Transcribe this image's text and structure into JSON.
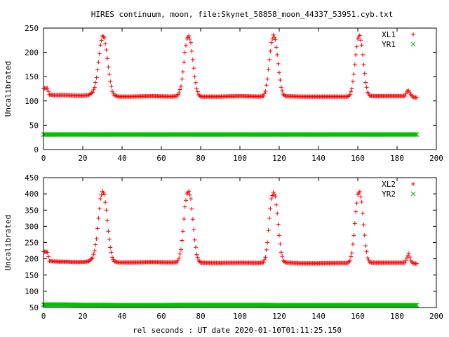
{
  "page": {
    "title": "HIRES continuum, moon, file:Skynet_58858_moon_44337_53951.cyb.txt",
    "xlabel": "rel seconds : UT date 2020-01-10T01:11:25.150"
  },
  "chart_data": [
    {
      "type": "scatter",
      "ylabel": "Uncalibrated",
      "xlim": [
        0,
        200
      ],
      "ylim": [
        0,
        250
      ],
      "xticks": [
        "0",
        "20",
        "40",
        "60",
        "80",
        "100",
        "120",
        "140",
        "160",
        "180",
        "200"
      ],
      "yticks": [
        "0",
        "50",
        "100",
        "150",
        "200",
        "250"
      ],
      "legend_position": "top-right",
      "series": [
        {
          "name": "XL1",
          "marker": "plus",
          "color": "#ff0000",
          "points": [
            [
              0,
              126
            ],
            [
              1,
              126
            ],
            [
              2,
              126
            ],
            [
              3,
              113
            ],
            [
              5,
              112
            ],
            [
              8,
              112
            ],
            [
              12,
              112
            ],
            [
              16,
              111
            ],
            [
              20,
              111
            ],
            [
              23,
              112
            ],
            [
              25,
              118
            ],
            [
              26,
              128
            ],
            [
              27,
              148
            ],
            [
              28,
              180
            ],
            [
              29,
              215
            ],
            [
              30,
              234
            ],
            [
              31,
              230
            ],
            [
              32,
              205
            ],
            [
              33,
              170
            ],
            [
              34,
              140
            ],
            [
              35,
              120
            ],
            [
              36,
              112
            ],
            [
              38,
              109
            ],
            [
              45,
              109
            ],
            [
              55,
              110
            ],
            [
              65,
              109
            ],
            [
              68,
              110
            ],
            [
              69,
              117
            ],
            [
              70,
              130
            ],
            [
              71,
              160
            ],
            [
              72,
              200
            ],
            [
              73,
              228
            ],
            [
              74,
              234
            ],
            [
              75,
              220
            ],
            [
              76,
              185
            ],
            [
              77,
              150
            ],
            [
              78,
              125
            ],
            [
              79,
              113
            ],
            [
              80,
              109
            ],
            [
              90,
              109
            ],
            [
              100,
              110
            ],
            [
              110,
              109
            ],
            [
              112,
              110
            ],
            [
              113,
              120
            ],
            [
              114,
              145
            ],
            [
              115,
              185
            ],
            [
              116,
              220
            ],
            [
              117,
              236
            ],
            [
              118,
              226
            ],
            [
              119,
              195
            ],
            [
              120,
              158
            ],
            [
              121,
              128
            ],
            [
              122,
              114
            ],
            [
              123,
              110
            ],
            [
              130,
              109
            ],
            [
              140,
              109
            ],
            [
              150,
              109
            ],
            [
              155,
              109
            ],
            [
              156,
              113
            ],
            [
              157,
              125
            ],
            [
              158,
              155
            ],
            [
              159,
              195
            ],
            [
              160,
              228
            ],
            [
              161,
              235
            ],
            [
              162,
              215
            ],
            [
              163,
              175
            ],
            [
              164,
              138
            ],
            [
              165,
              118
            ],
            [
              166,
              111
            ],
            [
              167,
              110
            ],
            [
              175,
              110
            ],
            [
              180,
              110
            ],
            [
              184,
              110
            ],
            [
              185,
              120
            ],
            [
              186,
              121
            ],
            [
              187,
              113
            ],
            [
              188,
              108
            ],
            [
              190,
              107
            ]
          ]
        },
        {
          "name": "YR1",
          "marker": "cross",
          "color": "#00c000",
          "points": [
            [
              0,
              31
            ],
            [
              10,
              31
            ],
            [
              20,
              31
            ],
            [
              30,
              31
            ],
            [
              40,
              31
            ],
            [
              50,
              31
            ],
            [
              60,
              31
            ],
            [
              70,
              31
            ],
            [
              80,
              31
            ],
            [
              90,
              31
            ],
            [
              100,
              31
            ],
            [
              110,
              31
            ],
            [
              120,
              31
            ],
            [
              130,
              31
            ],
            [
              140,
              31
            ],
            [
              150,
              31
            ],
            [
              160,
              31
            ],
            [
              170,
              31
            ],
            [
              180,
              31
            ],
            [
              190,
              31
            ]
          ]
        }
      ]
    },
    {
      "type": "scatter",
      "ylabel": "Uncalibrated",
      "xlim": [
        0,
        200
      ],
      "ylim": [
        50,
        450
      ],
      "xticks": [
        "0",
        "20",
        "40",
        "60",
        "80",
        "100",
        "120",
        "140",
        "160",
        "180",
        "200"
      ],
      "yticks": [
        "50",
        "100",
        "150",
        "200",
        "250",
        "300",
        "350",
        "400",
        "450"
      ],
      "legend_position": "top-right",
      "series": [
        {
          "name": "XL2",
          "marker": "plus",
          "color": "#ff0000",
          "points": [
            [
              0,
              222
            ],
            [
              1,
              222
            ],
            [
              2,
              220
            ],
            [
              3,
              193
            ],
            [
              5,
              192
            ],
            [
              8,
              191
            ],
            [
              12,
              191
            ],
            [
              16,
              190
            ],
            [
              20,
              190
            ],
            [
              23,
              192
            ],
            [
              25,
              203
            ],
            [
              26,
              225
            ],
            [
              27,
              262
            ],
            [
              28,
              325
            ],
            [
              29,
              385
            ],
            [
              30,
              408
            ],
            [
              31,
              398
            ],
            [
              32,
              350
            ],
            [
              33,
              285
            ],
            [
              34,
              235
            ],
            [
              35,
              205
            ],
            [
              36,
              192
            ],
            [
              38,
              189
            ],
            [
              45,
              189
            ],
            [
              55,
              190
            ],
            [
              65,
              189
            ],
            [
              68,
              190
            ],
            [
              69,
              202
            ],
            [
              70,
              228
            ],
            [
              71,
              285
            ],
            [
              72,
              360
            ],
            [
              73,
              400
            ],
            [
              74,
              408
            ],
            [
              75,
              385
            ],
            [
              76,
              322
            ],
            [
              77,
              258
            ],
            [
              78,
              213
            ],
            [
              79,
              195
            ],
            [
              80,
              188
            ],
            [
              90,
              187
            ],
            [
              100,
              188
            ],
            [
              110,
              187
            ],
            [
              112,
              189
            ],
            [
              113,
              205
            ],
            [
              114,
              250
            ],
            [
              115,
              325
            ],
            [
              116,
              385
            ],
            [
              117,
              405
            ],
            [
              118,
              392
            ],
            [
              119,
              340
            ],
            [
              120,
              272
            ],
            [
              121,
              220
            ],
            [
              122,
              195
            ],
            [
              123,
              189
            ],
            [
              130,
              186
            ],
            [
              140,
              186
            ],
            [
              150,
              187
            ],
            [
              155,
              187
            ],
            [
              156,
              195
            ],
            [
              157,
              218
            ],
            [
              158,
              272
            ],
            [
              159,
              345
            ],
            [
              160,
              398
            ],
            [
              161,
              407
            ],
            [
              162,
              375
            ],
            [
              163,
              305
            ],
            [
              164,
              240
            ],
            [
              165,
              203
            ],
            [
              166,
              190
            ],
            [
              167,
              188
            ],
            [
              175,
              188
            ],
            [
              180,
              188
            ],
            [
              184,
              188
            ],
            [
              185,
              203
            ],
            [
              186,
              216
            ],
            [
              187,
              195
            ],
            [
              188,
              186
            ],
            [
              190,
              185
            ]
          ]
        },
        {
          "name": "YR2",
          "marker": "cross",
          "color": "#00c000",
          "points": [
            [
              0,
              59
            ],
            [
              10,
              59
            ],
            [
              20,
              58
            ],
            [
              30,
              58
            ],
            [
              40,
              57
            ],
            [
              50,
              57
            ],
            [
              60,
              57
            ],
            [
              70,
              58
            ],
            [
              80,
              58
            ],
            [
              90,
              58
            ],
            [
              100,
              58
            ],
            [
              110,
              58
            ],
            [
              120,
              57
            ],
            [
              130,
              57
            ],
            [
              140,
              57
            ],
            [
              150,
              57
            ],
            [
              160,
              57
            ],
            [
              170,
              57
            ],
            [
              180,
              57
            ],
            [
              190,
              57
            ]
          ]
        }
      ]
    }
  ]
}
